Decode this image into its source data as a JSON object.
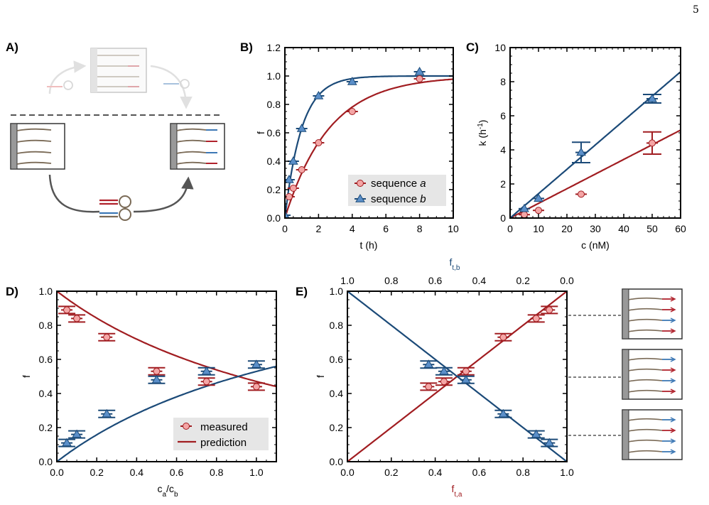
{
  "page_number": "5",
  "panel_labels": {
    "A": "A)",
    "B": "B)",
    "C": "C)",
    "D": "D)",
    "E": "E)"
  },
  "colors": {
    "red": "#a11d21",
    "blue": "#1b4a78",
    "red_marker": "#f4a5a5",
    "blue_marker": "#5b8fc9",
    "grey": "#555555"
  },
  "chart_data": [
    {
      "id": "B",
      "type": "scatter",
      "xlabel": "t (h)",
      "ylabel": "f",
      "xlim": [
        0,
        10
      ],
      "ylim": [
        0,
        1.2
      ],
      "xticks": [
        "0",
        "2",
        "4",
        "6",
        "8",
        "10"
      ],
      "yticks": [
        "0.0",
        "0.2",
        "0.4",
        "0.6",
        "0.8",
        "1.0",
        "1.2"
      ],
      "legend": {
        "position": "bottom-right",
        "entries": [
          "sequence a",
          "sequence b"
        ],
        "seq_prefix": "sequence",
        "a_italic": "a",
        "b_italic": "b"
      },
      "series": [
        {
          "name": "sequence a",
          "color": "#a11d21",
          "marker": "circle",
          "points": [
            [
              0,
              0.0
            ],
            [
              0.25,
              0.15
            ],
            [
              0.5,
              0.21
            ],
            [
              1,
              0.34
            ],
            [
              2,
              0.53
            ],
            [
              4,
              0.75
            ],
            [
              8,
              0.98
            ]
          ],
          "fit_rate": 0.38
        },
        {
          "name": "sequence b",
          "color": "#1b4a78",
          "marker": "triangle",
          "points": [
            [
              0,
              0.02
            ],
            [
              0.25,
              0.27
            ],
            [
              0.5,
              0.4
            ],
            [
              1,
              0.63
            ],
            [
              2,
              0.86
            ],
            [
              4,
              0.96
            ],
            [
              8,
              1.03
            ]
          ],
          "fit_rate": 1.0
        }
      ]
    },
    {
      "id": "C",
      "type": "scatter",
      "xlabel": "c (nM)",
      "ylabel": "k (h⁻¹)",
      "ylabel_main": "k (h",
      "ylabel_sup": "-1",
      "ylabel_end": ")",
      "xlim": [
        0,
        60
      ],
      "ylim": [
        0,
        10
      ],
      "xticks": [
        "0",
        "10",
        "20",
        "30",
        "40",
        "50",
        "60"
      ],
      "yticks": [
        "0",
        "2",
        "4",
        "6",
        "8",
        "10"
      ],
      "series": [
        {
          "name": "sequence a",
          "color": "#a11d21",
          "marker": "circle",
          "points": [
            [
              5,
              0.2
            ],
            [
              10,
              0.45
            ],
            [
              25,
              1.4
            ],
            [
              50,
              4.4
            ]
          ],
          "slope": 0.086
        },
        {
          "name": "sequence b",
          "color": "#1b4a78",
          "marker": "triangle",
          "points": [
            [
              5,
              0.55
            ],
            [
              10,
              1.15
            ],
            [
              25,
              3.85
            ],
            [
              50,
              7.0
            ]
          ],
          "slope": 0.143
        }
      ]
    },
    {
      "id": "D",
      "type": "scatter",
      "xlabel": "c_a/c_b",
      "xlabel_parts": [
        "c",
        "a",
        "/c",
        "b"
      ],
      "ylabel": "f",
      "xlim": [
        0,
        1.1
      ],
      "ylim": [
        0,
        1.0
      ],
      "xticks": [
        "0.0",
        "0.2",
        "0.4",
        "0.6",
        "0.8",
        "1.0"
      ],
      "yticks": [
        "0.0",
        "0.2",
        "0.4",
        "0.6",
        "0.8",
        "1.0"
      ],
      "legend": {
        "position": "bottom-right",
        "entries": [
          "measured",
          "prediction"
        ]
      },
      "series": [
        {
          "name": "measured",
          "color": "#a11d21",
          "marker": "circle",
          "points": [
            [
              0.05,
              0.89
            ],
            [
              0.1,
              0.84
            ],
            [
              0.25,
              0.73
            ],
            [
              0.5,
              0.53
            ],
            [
              0.75,
              0.47
            ],
            [
              1.0,
              0.44
            ]
          ]
        },
        {
          "name": "",
          "color": "#1b4a78",
          "marker": "triangle",
          "points": [
            [
              0.05,
              0.11
            ],
            [
              0.1,
              0.16
            ],
            [
              0.25,
              0.28
            ],
            [
              0.5,
              0.48
            ],
            [
              0.75,
              0.53
            ],
            [
              1.0,
              0.57
            ]
          ]
        },
        {
          "name": "prediction",
          "color": "#a11d21",
          "line": "red_pred"
        },
        {
          "name": "",
          "color": "#1b4a78",
          "line": "blue_pred"
        }
      ]
    },
    {
      "id": "E",
      "type": "scatter",
      "xlabel": "f_t,a",
      "xlabel_parts": [
        "f",
        "t,a"
      ],
      "top_xlabel_parts": [
        "f",
        "t,b"
      ],
      "ylabel": "f",
      "xlim": [
        0,
        1.0
      ],
      "ylim": [
        0,
        1.0
      ],
      "xticks": [
        "0.0",
        "0.2",
        "0.4",
        "0.6",
        "0.8",
        "1.0"
      ],
      "top_xticks": [
        "1.0",
        "0.8",
        "0.6",
        "0.4",
        "0.2",
        "0.0"
      ],
      "yticks": [
        "0.0",
        "0.2",
        "0.4",
        "0.6",
        "0.8",
        "1.0"
      ],
      "series": [
        {
          "name": "",
          "color": "#a11d21",
          "marker": "circle",
          "points": [
            [
              0.37,
              0.44
            ],
            [
              0.44,
              0.47
            ],
            [
              0.54,
              0.53
            ],
            [
              0.71,
              0.73
            ],
            [
              0.86,
              0.84
            ],
            [
              0.92,
              0.89
            ]
          ]
        },
        {
          "name": "",
          "color": "#1b4a78",
          "marker": "triangle",
          "points": [
            [
              0.37,
              0.57
            ],
            [
              0.44,
              0.53
            ],
            [
              0.54,
              0.48
            ],
            [
              0.71,
              0.28
            ],
            [
              0.86,
              0.16
            ],
            [
              0.92,
              0.11
            ]
          ]
        }
      ]
    }
  ]
}
